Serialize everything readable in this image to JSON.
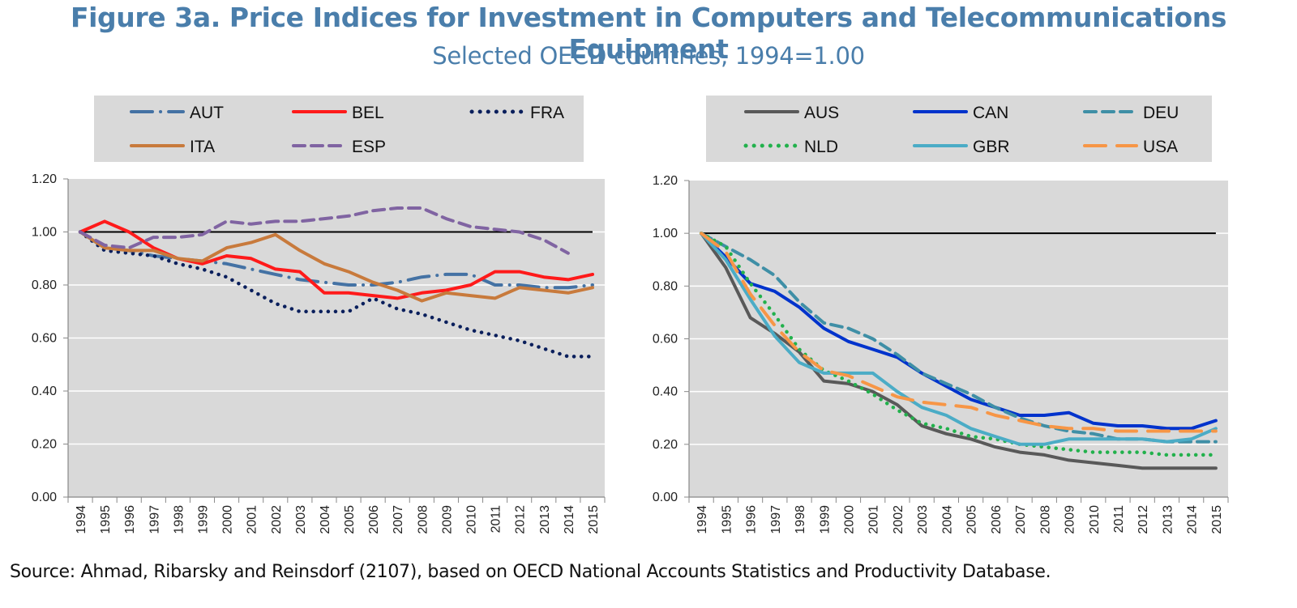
{
  "title": "Figure 3a. Price Indices for Investment in Computers and Telecommunications Equipment",
  "subtitle": "Selected OECD countries, 1994=1.00",
  "source": "Source: Ahmad, Ribarsky and Reinsdorf (2107), based on OECD National Accounts Statistics and Productivity Database.",
  "chart_data": [
    {
      "type": "line",
      "title": "",
      "xlabel": "",
      "ylabel": "",
      "ylim": [
        0,
        1.2
      ],
      "yticks": [
        "0.00",
        "0.20",
        "0.40",
        "0.60",
        "0.80",
        "1.00",
        "1.20"
      ],
      "grid": true,
      "reference_line": 1.0,
      "legend_placement": "top",
      "x": [
        "1994",
        "1995",
        "1996",
        "1997",
        "1998",
        "1999",
        "2000",
        "2001",
        "2002",
        "2003",
        "2004",
        "2005",
        "2006",
        "2007",
        "2008",
        "2009",
        "2010",
        "2011",
        "2012",
        "2013",
        "2014",
        "2015"
      ],
      "series": [
        {
          "name": "AUT",
          "color": "#4472a4",
          "style": "dashdot",
          "values": [
            1.0,
            0.94,
            0.93,
            0.91,
            0.9,
            0.89,
            0.88,
            0.86,
            0.84,
            0.82,
            0.81,
            0.8,
            0.8,
            0.81,
            0.83,
            0.84,
            0.84,
            0.8,
            0.8,
            0.79,
            0.79,
            0.8
          ]
        },
        {
          "name": "BEL",
          "color": "#ff1a1a",
          "style": "solid",
          "values": [
            1.0,
            1.04,
            1.0,
            0.94,
            0.9,
            0.88,
            0.91,
            0.9,
            0.86,
            0.85,
            0.77,
            0.77,
            0.76,
            0.75,
            0.77,
            0.78,
            0.8,
            0.85,
            0.85,
            0.83,
            0.82,
            0.84
          ]
        },
        {
          "name": "FRA",
          "color": "#0a1f5c",
          "style": "dotted",
          "values": [
            1.0,
            0.93,
            0.92,
            0.91,
            0.88,
            0.86,
            0.83,
            0.78,
            0.73,
            0.7,
            0.7,
            0.7,
            0.75,
            0.71,
            0.69,
            0.66,
            0.63,
            0.61,
            0.59,
            0.56,
            0.53,
            0.53
          ]
        },
        {
          "name": "ITA",
          "color": "#c87a3c",
          "style": "solid",
          "values": [
            1.0,
            0.94,
            0.93,
            0.93,
            0.9,
            0.89,
            0.94,
            0.96,
            0.99,
            0.93,
            0.88,
            0.85,
            0.81,
            0.78,
            0.74,
            0.77,
            0.76,
            0.75,
            0.79,
            0.78,
            0.77,
            0.79
          ]
        },
        {
          "name": "ESP",
          "color": "#8064a2",
          "style": "dashed",
          "values": [
            1.0,
            0.95,
            0.94,
            0.98,
            0.98,
            0.99,
            1.04,
            1.03,
            1.04,
            1.04,
            1.05,
            1.06,
            1.08,
            1.09,
            1.09,
            1.05,
            1.02,
            1.01,
            1.0,
            0.97,
            0.92,
            null
          ]
        }
      ]
    },
    {
      "type": "line",
      "title": "",
      "xlabel": "",
      "ylabel": "",
      "ylim": [
        0,
        1.2
      ],
      "yticks": [
        "0.00",
        "0.20",
        "0.40",
        "0.60",
        "0.80",
        "1.00",
        "1.20"
      ],
      "grid": true,
      "reference_line": 1.0,
      "legend_placement": "top",
      "x": [
        "1994",
        "1995",
        "1996",
        "1997",
        "1998",
        "1999",
        "2000",
        "2001",
        "2002",
        "2003",
        "2004",
        "2005",
        "2006",
        "2007",
        "2008",
        "2009",
        "2010",
        "2011",
        "2012",
        "2013",
        "2014",
        "2015"
      ],
      "series": [
        {
          "name": "AUS",
          "color": "#595959",
          "style": "solid",
          "values": [
            1.0,
            0.87,
            0.68,
            0.62,
            0.55,
            0.44,
            0.43,
            0.4,
            0.35,
            0.27,
            0.24,
            0.22,
            0.19,
            0.17,
            0.16,
            0.14,
            0.13,
            0.12,
            0.11,
            0.11,
            0.11,
            0.11
          ]
        },
        {
          "name": "CAN",
          "color": "#0033cc",
          "style": "solid",
          "values": [
            1.0,
            0.91,
            0.81,
            0.78,
            0.72,
            0.64,
            0.59,
            0.56,
            0.53,
            0.47,
            0.42,
            0.37,
            0.34,
            0.31,
            0.31,
            0.32,
            0.28,
            0.27,
            0.27,
            0.26,
            0.26,
            0.29
          ]
        },
        {
          "name": "DEU",
          "color": "#3f8fa6",
          "style": "dashed",
          "values": [
            1.0,
            0.95,
            0.9,
            0.84,
            0.74,
            0.66,
            0.64,
            0.6,
            0.54,
            0.47,
            0.43,
            0.39,
            0.34,
            0.3,
            0.27,
            0.25,
            0.24,
            0.22,
            0.22,
            0.21,
            0.21,
            0.21
          ]
        },
        {
          "name": "NLD",
          "color": "#22b14c",
          "style": "dotted",
          "values": [
            1.0,
            0.95,
            0.81,
            0.69,
            0.56,
            0.48,
            0.44,
            0.39,
            0.33,
            0.28,
            0.26,
            0.23,
            0.22,
            0.2,
            0.19,
            0.18,
            0.17,
            0.17,
            0.17,
            0.16,
            0.16,
            0.16
          ]
        },
        {
          "name": "GBR",
          "color": "#4bacc6",
          "style": "solid",
          "values": [
            1.0,
            0.9,
            0.75,
            0.61,
            0.51,
            0.47,
            0.47,
            0.47,
            0.4,
            0.34,
            0.31,
            0.26,
            0.23,
            0.2,
            0.2,
            0.22,
            0.22,
            0.22,
            0.22,
            0.21,
            0.22,
            0.26
          ]
        },
        {
          "name": "USA",
          "color": "#f79646",
          "style": "longdash",
          "values": [
            1.0,
            0.93,
            0.77,
            0.65,
            0.55,
            0.48,
            0.46,
            0.42,
            0.38,
            0.36,
            0.35,
            0.34,
            0.31,
            0.29,
            0.27,
            0.26,
            0.26,
            0.25,
            0.25,
            0.25,
            0.25,
            0.25
          ]
        }
      ]
    }
  ]
}
